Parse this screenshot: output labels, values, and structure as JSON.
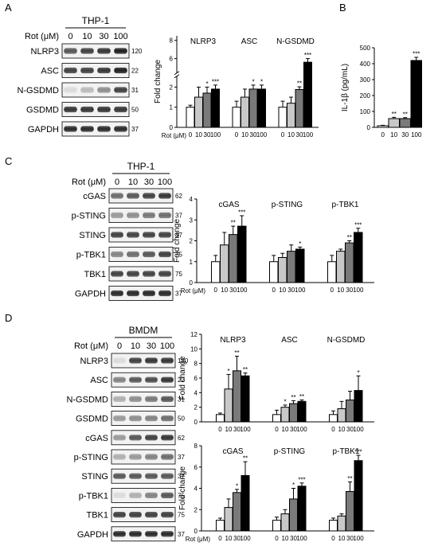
{
  "panels": {
    "A": {
      "letter": "A",
      "blot": {
        "cell": "THP-1",
        "rot_label": "Rot (μM)",
        "doses": [
          "0",
          "10",
          "30",
          "100"
        ],
        "bands": [
          {
            "name": "NLRP3",
            "mw": "120"
          },
          {
            "name": "ASC",
            "mw": "22"
          },
          {
            "name": "N-GSDMD",
            "mw": "31"
          },
          {
            "name": "GSDMD",
            "mw": "50"
          },
          {
            "name": "GAPDH",
            "mw": "37"
          }
        ]
      }
    },
    "B": {
      "letter": "B"
    },
    "C": {
      "letter": "C",
      "blot": {
        "cell": "THP-1",
        "rot_label": "Rot (μM)",
        "doses": [
          "0",
          "10",
          "30",
          "100"
        ],
        "bands": [
          {
            "name": "cGAS",
            "mw": "62"
          },
          {
            "name": "p-STING",
            "mw": "37"
          },
          {
            "name": "STING",
            "mw": "37"
          },
          {
            "name": "p-TBK1",
            "mw": "75"
          },
          {
            "name": "TBK1",
            "mw": "75"
          },
          {
            "name": "GAPDH",
            "mw": "37"
          }
        ]
      }
    },
    "D": {
      "letter": "D",
      "blot": {
        "cell": "BMDM",
        "rot_label": "Rot (μM)",
        "doses": [
          "0",
          "10",
          "30",
          "100"
        ],
        "bands": [
          {
            "name": "NLRP3",
            "mw": "120"
          },
          {
            "name": "ASC",
            "mw": "22"
          },
          {
            "name": "N-GSDMD",
            "mw": "31"
          },
          {
            "name": "GSDMD",
            "mw": "50"
          },
          {
            "name": "cGAS",
            "mw": "62"
          },
          {
            "name": "p-STING",
            "mw": "37"
          },
          {
            "name": "STING",
            "mw": "37"
          },
          {
            "name": "p-TBK1",
            "mw": "75"
          },
          {
            "name": "TBK1",
            "mw": "75"
          },
          {
            "name": "GAPDH",
            "mw": "37"
          }
        ]
      }
    }
  },
  "colors": {
    "dose_0": "#ffffff",
    "dose_10": "#c8c8c8",
    "dose_30": "#7a7a7a",
    "dose_100": "#000000"
  },
  "chart_data": [
    {
      "id": "A-fold",
      "type": "bar",
      "ylabel": "Fold change",
      "xlabel": "Rot (μM)",
      "categories": [
        "0",
        "10",
        "30",
        "100"
      ],
      "y_break": [
        2.5,
        4.5
      ],
      "yticks": [
        0,
        1,
        2,
        6,
        8
      ],
      "ylim": [
        0,
        8.5
      ],
      "groups": [
        {
          "name": "NLRP3",
          "values": [
            1.0,
            1.5,
            1.7,
            1.9
          ],
          "errors": [
            0.1,
            0.5,
            0.3,
            0.2
          ],
          "sig": [
            "",
            "",
            "*",
            "***"
          ]
        },
        {
          "name": "ASC",
          "values": [
            1.0,
            1.5,
            1.9,
            1.9
          ],
          "errors": [
            0.3,
            0.4,
            0.2,
            0.2
          ],
          "sig": [
            "",
            "",
            "*",
            "*"
          ]
        },
        {
          "name": "N-GSDMD",
          "values": [
            1.0,
            1.2,
            2.6,
            5.6
          ],
          "errors": [
            0.3,
            0.3,
            0.3,
            0.4
          ],
          "sig": [
            "",
            "",
            "**",
            "***"
          ]
        }
      ]
    },
    {
      "id": "B-il1b",
      "type": "bar",
      "ylabel": "IL-1β (pg/mL)",
      "categories": [
        "0",
        "10",
        "30",
        "100"
      ],
      "yticks": [
        0,
        100,
        200,
        300,
        400,
        500
      ],
      "ylim": [
        0,
        500
      ],
      "groups": [
        {
          "name": "",
          "values": [
            10,
            55,
            55,
            420
          ],
          "errors": [
            3,
            8,
            6,
            20
          ],
          "sig": [
            "",
            "**",
            "**",
            "***"
          ]
        }
      ]
    },
    {
      "id": "C-fold",
      "type": "bar",
      "ylabel": "Fold change",
      "xlabel": "Rot (μM)",
      "categories": [
        "0",
        "10",
        "30",
        "100"
      ],
      "yticks": [
        0,
        1,
        2,
        3,
        4
      ],
      "ylim": [
        0,
        4
      ],
      "groups": [
        {
          "name": "cGAS",
          "values": [
            1.0,
            1.8,
            2.3,
            2.7
          ],
          "errors": [
            0.3,
            0.6,
            0.4,
            0.5
          ],
          "sig": [
            "",
            "",
            "**",
            "***"
          ]
        },
        {
          "name": "p-STING",
          "values": [
            1.0,
            1.2,
            1.5,
            1.6
          ],
          "errors": [
            0.3,
            0.2,
            0.3,
            0.1
          ],
          "sig": [
            "",
            "",
            "",
            "*"
          ]
        },
        {
          "name": "p-TBK1",
          "values": [
            1.0,
            1.5,
            1.9,
            2.4
          ],
          "errors": [
            0.3,
            0.1,
            0.1,
            0.2
          ],
          "sig": [
            "",
            "",
            "**",
            "***"
          ]
        }
      ]
    },
    {
      "id": "D-fold-1",
      "type": "bar",
      "ylabel": "Fold change",
      "xlabel": "Rot (μM)",
      "categories": [
        "0",
        "10",
        "30",
        "100"
      ],
      "yticks": [
        0,
        2,
        4,
        6,
        8,
        10,
        12
      ],
      "ylim": [
        0,
        12
      ],
      "groups": [
        {
          "name": "NLRP3",
          "values": [
            1.0,
            4.5,
            7.0,
            6.3
          ],
          "errors": [
            0.2,
            2.0,
            2.0,
            0.4
          ],
          "sig": [
            "",
            "*",
            "**",
            "**"
          ]
        },
        {
          "name": "ASC",
          "values": [
            1.0,
            2.0,
            2.5,
            2.8
          ],
          "errors": [
            0.6,
            0.3,
            0.4,
            0.2
          ],
          "sig": [
            "",
            "*",
            "**",
            "**"
          ]
        },
        {
          "name": "N-GSDMD",
          "values": [
            1.0,
            1.8,
            3.0,
            4.3
          ],
          "errors": [
            0.5,
            1.0,
            1.2,
            2.0
          ],
          "sig": [
            "",
            "",
            "",
            "*"
          ]
        }
      ]
    },
    {
      "id": "D-fold-2",
      "type": "bar",
      "ylabel": "Fold change",
      "xlabel": "Rot (μM)",
      "categories": [
        "0",
        "10",
        "30",
        "100"
      ],
      "yticks": [
        0,
        2,
        4,
        6,
        8
      ],
      "ylim": [
        0,
        8
      ],
      "groups": [
        {
          "name": "cGAS",
          "values": [
            1.0,
            2.2,
            3.6,
            5.2
          ],
          "errors": [
            0.2,
            0.8,
            0.3,
            1.3
          ],
          "sig": [
            "",
            "",
            "*",
            "**"
          ]
        },
        {
          "name": "p-STING",
          "values": [
            1.0,
            1.6,
            3.0,
            4.2
          ],
          "errors": [
            0.3,
            0.4,
            1.0,
            0.3
          ],
          "sig": [
            "",
            "",
            "*",
            "***"
          ]
        },
        {
          "name": "p-TBK1",
          "values": [
            1.0,
            1.4,
            3.7,
            6.6
          ],
          "errors": [
            0.2,
            0.2,
            0.9,
            0.5
          ],
          "sig": [
            "",
            "",
            "**",
            "***"
          ]
        }
      ]
    }
  ]
}
